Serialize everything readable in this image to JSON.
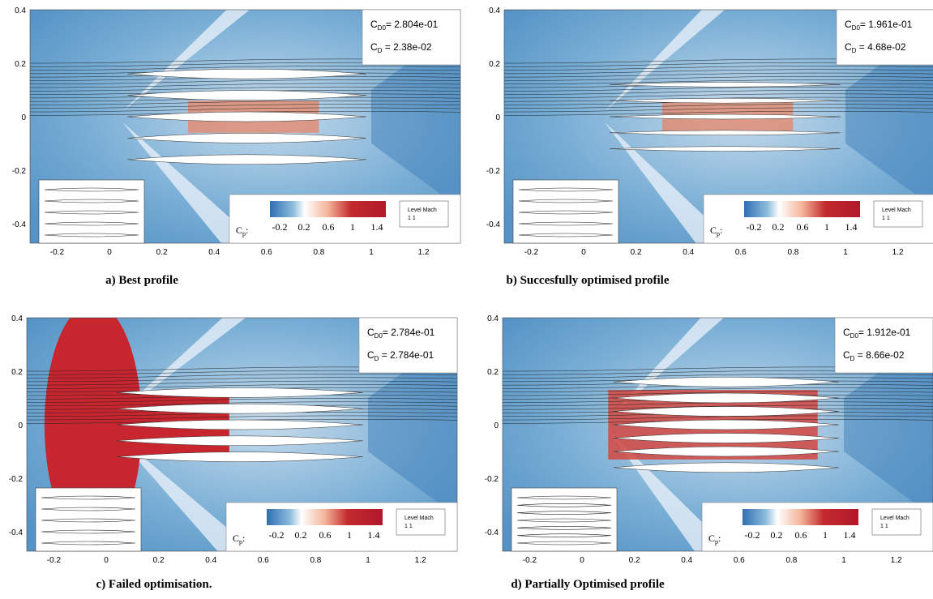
{
  "panels": [
    {
      "caption": "a)  Best profile",
      "cd0_value": "= 2.804e-01",
      "cd_value": " = 2.38e-02"
    },
    {
      "caption": "b)  Succesfully optimised profile",
      "cd0_value": "= 1.961e-01",
      "cd_value": " = 4.68e-02"
    },
    {
      "caption": "c)  Failed optimisation.",
      "cd0_value": "= 2.784e-01",
      "cd_value": " = 2.784e-01"
    },
    {
      "caption": "d)  Partially Optimised profile",
      "cd0_value": "= 1.912e-01",
      "cd_value": " = 8.66e-02"
    }
  ],
  "coefficient": {
    "symbol": "C",
    "cd0_sub": "D0",
    "cd_sub": "D"
  },
  "axes": {
    "xticks": [
      "-0.2",
      "0",
      "0.2",
      "0.4",
      "0.6",
      "0.8",
      "1",
      "1.2"
    ],
    "yticks": [
      "0.4",
      "0.2",
      "0",
      "-0.2",
      "-0.4"
    ]
  },
  "colorbar": {
    "symbol": "C",
    "sub": "p",
    "suffix": ":",
    "ticks": [
      "-0.2",
      "0.2",
      "0.6",
      "1",
      "1.4"
    ]
  },
  "legend": {
    "header": "Level Mach",
    "row": "1      1"
  }
}
